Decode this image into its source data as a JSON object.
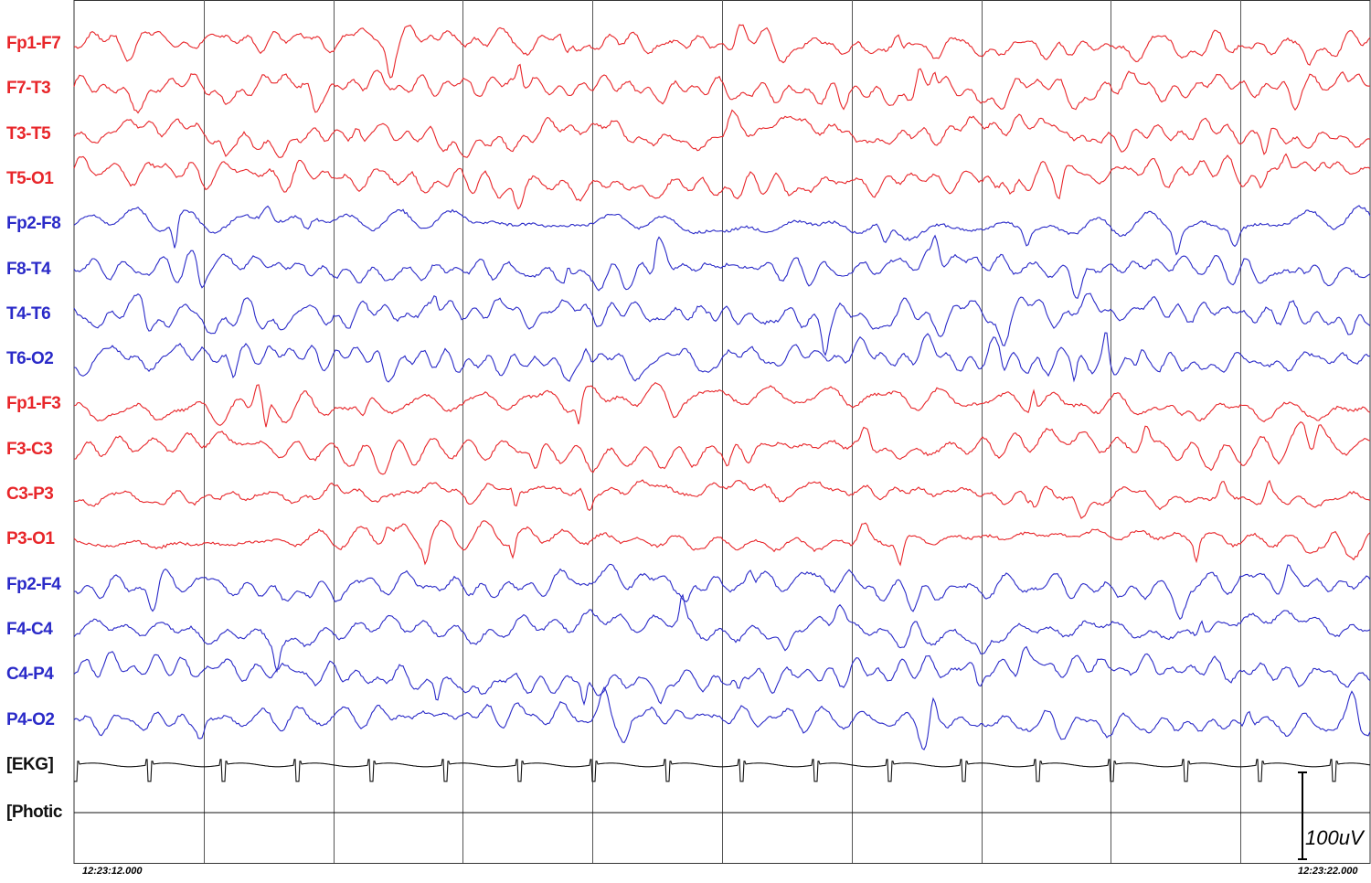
{
  "chart_data": {
    "type": "line",
    "channels": [
      {
        "label": "Fp1-F7",
        "color": "#e8262a"
      },
      {
        "label": "F7-T3",
        "color": "#e8262a"
      },
      {
        "label": "T3-T5",
        "color": "#e8262a"
      },
      {
        "label": "T5-O1",
        "color": "#e8262a"
      },
      {
        "label": "Fp2-F8",
        "color": "#2a2ac8"
      },
      {
        "label": "F8-T4",
        "color": "#2a2ac8"
      },
      {
        "label": "T4-T6",
        "color": "#2a2ac8"
      },
      {
        "label": "T6-O2",
        "color": "#2a2ac8"
      },
      {
        "label": "Fp1-F3",
        "color": "#e8262a"
      },
      {
        "label": "F3-C3",
        "color": "#e8262a"
      },
      {
        "label": "C3-P3",
        "color": "#e8262a"
      },
      {
        "label": "P3-O1",
        "color": "#e8262a"
      },
      {
        "label": "Fp2-F4",
        "color": "#2a2ac8"
      },
      {
        "label": "F4-C4",
        "color": "#2a2ac8"
      },
      {
        "label": "C4-P4",
        "color": "#2a2ac8"
      },
      {
        "label": "P4-O2",
        "color": "#2a2ac8"
      },
      {
        "label": "[EKG]",
        "color": "#111111"
      },
      {
        "label": "[Photic",
        "color": "#111111"
      }
    ],
    "time_start": "12:23:12.000",
    "time_end": "12:23:22.000",
    "duration_seconds": 10,
    "gridline_interval_seconds": 1,
    "scale_label": "100uV"
  }
}
